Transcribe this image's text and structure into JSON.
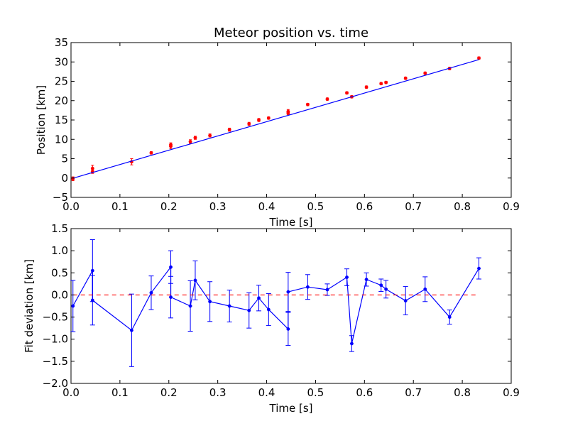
{
  "figure": {
    "background": "#ffffff"
  },
  "chart_data": [
    {
      "type": "scatter",
      "title": "Meteor position vs. time",
      "xlabel": "Time [s]",
      "ylabel": "Position [km]",
      "xlim": [
        0.0,
        0.9
      ],
      "ylim": [
        -5,
        35
      ],
      "xticks": [
        0.0,
        0.1,
        0.2,
        0.3,
        0.4,
        0.5,
        0.6,
        0.7,
        0.8,
        0.9
      ],
      "xtick_labels": [
        "0.0",
        "0.1",
        "0.2",
        "0.3",
        "0.4",
        "0.5",
        "0.6",
        "0.7",
        "0.8",
        "0.9"
      ],
      "yticks": [
        -5,
        0,
        5,
        10,
        15,
        20,
        25,
        30,
        35
      ],
      "ytick_labels": [
        "−5",
        "0",
        "5",
        "10",
        "15",
        "20",
        "25",
        "30",
        "35"
      ],
      "grid": false,
      "series": [
        {
          "kind": "errorbar-points",
          "color": "#ff0000",
          "x": [
            0.004,
            0.044,
            0.044,
            0.124,
            0.164,
            0.204,
            0.204,
            0.244,
            0.254,
            0.284,
            0.324,
            0.364,
            0.384,
            0.404,
            0.444,
            0.444,
            0.484,
            0.524,
            0.564,
            0.574,
            0.604,
            0.634,
            0.644,
            0.684,
            0.724,
            0.774,
            0.834
          ],
          "y": [
            -0.2,
            2.5,
            1.7,
            4.2,
            6.5,
            8.6,
            8.2,
            9.4,
            10.4,
            11.0,
            12.5,
            14.0,
            15.0,
            15.5,
            17.2,
            16.8,
            19.0,
            20.4,
            22.0,
            21.0,
            23.5,
            24.4,
            24.7,
            25.8,
            27.1,
            28.3,
            31.0
          ],
          "yerr": [
            0.5,
            0.8,
            0.5,
            0.8,
            0.3,
            0.5,
            0.6,
            0.5,
            0.4,
            0.4,
            0.4,
            0.4,
            0.4,
            0.3,
            0.5,
            0.4,
            0.3,
            0.3,
            0.3,
            0.3,
            0.3,
            0.3,
            0.3,
            0.3,
            0.3,
            0.3,
            0.3
          ]
        },
        {
          "kind": "line",
          "color": "#0000ff",
          "x": [
            0.004,
            0.834
          ],
          "y": [
            -0.05,
            30.6
          ]
        }
      ]
    },
    {
      "type": "line",
      "title": "",
      "xlabel": "Time [s]",
      "ylabel": "Fit deviation [km]",
      "xlim": [
        0.0,
        0.9
      ],
      "ylim": [
        -2.0,
        1.5
      ],
      "xticks": [
        0.0,
        0.1,
        0.2,
        0.3,
        0.4,
        0.5,
        0.6,
        0.7,
        0.8,
        0.9
      ],
      "xtick_labels": [
        "0.0",
        "0.1",
        "0.2",
        "0.3",
        "0.4",
        "0.5",
        "0.6",
        "0.7",
        "0.8",
        "0.9"
      ],
      "yticks": [
        -2.0,
        -1.5,
        -1.0,
        -0.5,
        0.0,
        0.5,
        1.0,
        1.5
      ],
      "ytick_labels": [
        "−2.0",
        "−1.5",
        "−1.0",
        "−0.5",
        "0.0",
        "0.5",
        "1.0",
        "1.5"
      ],
      "grid": false,
      "series": [
        {
          "kind": "errorbar-line",
          "color": "#0000ff",
          "x": [
            0.004,
            0.044,
            0.044,
            0.124,
            0.164,
            0.204,
            0.204,
            0.244,
            0.254,
            0.284,
            0.324,
            0.364,
            0.384,
            0.404,
            0.444,
            0.444,
            0.484,
            0.524,
            0.564,
            0.574,
            0.604,
            0.634,
            0.644,
            0.684,
            0.724,
            0.774,
            0.834
          ],
          "y": [
            -0.25,
            0.55,
            -0.12,
            -0.8,
            0.05,
            0.63,
            -0.05,
            -0.25,
            0.33,
            -0.15,
            -0.25,
            -0.35,
            -0.07,
            -0.33,
            -0.77,
            0.07,
            0.18,
            0.12,
            0.4,
            -1.1,
            0.35,
            0.22,
            0.13,
            -0.13,
            0.13,
            -0.5,
            0.6
          ],
          "yerr": [
            0.58,
            0.7,
            0.56,
            0.82,
            0.38,
            0.37,
            0.47,
            0.57,
            0.44,
            0.45,
            0.36,
            0.4,
            0.29,
            0.36,
            0.37,
            0.44,
            0.28,
            0.13,
            0.19,
            0.18,
            0.15,
            0.14,
            0.2,
            0.32,
            0.28,
            0.16,
            0.24
          ]
        },
        {
          "kind": "dashed-line",
          "color": "#ff0000",
          "x": [
            0.004,
            0.834
          ],
          "y": [
            0.0,
            0.0
          ]
        }
      ]
    }
  ]
}
